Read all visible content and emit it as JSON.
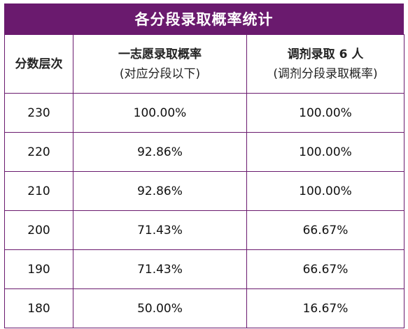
{
  "title": "各分段录取概率统计",
  "colors": {
    "accent": "#6a1a6e",
    "title_text": "#ffffff"
  },
  "table": {
    "headers": {
      "col1": "分数层次",
      "col2_line1": "一志愿录取概率",
      "col2_line2": "(对应分段以下)",
      "col3_line1": "调剂录取 6 人",
      "col3_line2": "(调剂分段录取概率)"
    },
    "rows": [
      {
        "score": "230",
        "first_choice": "100.00%",
        "adjusted": "100.00%"
      },
      {
        "score": "220",
        "first_choice": "92.86%",
        "adjusted": "100.00%"
      },
      {
        "score": "210",
        "first_choice": "92.86%",
        "adjusted": "100.00%"
      },
      {
        "score": "200",
        "first_choice": "71.43%",
        "adjusted": "66.67%"
      },
      {
        "score": "190",
        "first_choice": "71.43%",
        "adjusted": "66.67%"
      },
      {
        "score": "180",
        "first_choice": "50.00%",
        "adjusted": "16.67%"
      }
    ]
  }
}
